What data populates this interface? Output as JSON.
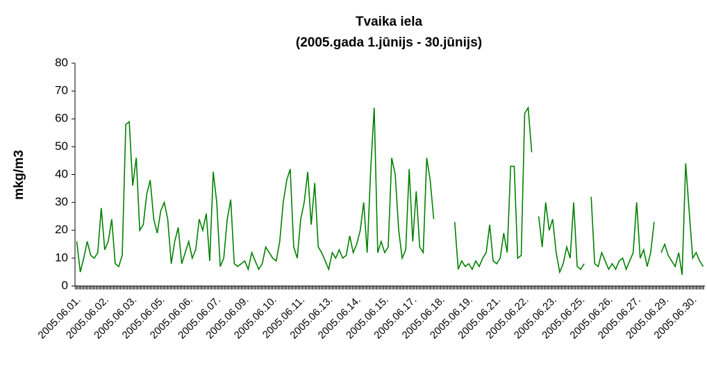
{
  "chart_data": {
    "type": "line",
    "title": "Tvaika iela",
    "subtitle": "(2005.gada 1.jūnijs - 30.jūnijs)",
    "y_label": "mkg/m3",
    "ylim": [
      0,
      80
    ],
    "yticks": [
      0,
      10,
      20,
      30,
      40,
      50,
      60,
      70,
      80
    ],
    "grid": false,
    "categories": [
      "2005.06.01.",
      null,
      null,
      null,
      null,
      null,
      null,
      null,
      "2005.06.02.",
      null,
      null,
      null,
      null,
      null,
      null,
      null,
      "2005.06.03.",
      null,
      null,
      null,
      null,
      null,
      null,
      null,
      "2005.06.05.",
      null,
      null,
      null,
      null,
      null,
      null,
      null,
      "2005.06.06.",
      null,
      null,
      null,
      null,
      null,
      null,
      null,
      "2005.06.07.",
      null,
      null,
      null,
      null,
      null,
      null,
      null,
      "2005.06.09.",
      null,
      null,
      null,
      null,
      null,
      null,
      null,
      "2005.06.10.",
      null,
      null,
      null,
      null,
      null,
      null,
      null,
      "2005.06.11.",
      null,
      null,
      null,
      null,
      null,
      null,
      null,
      "2005.06.13.",
      null,
      null,
      null,
      null,
      null,
      null,
      null,
      "2005.06.14.",
      null,
      null,
      null,
      null,
      null,
      null,
      null,
      "2005.06.15.",
      null,
      null,
      null,
      null,
      null,
      null,
      null,
      "2005.06.17.",
      null,
      null,
      null,
      null,
      null,
      null,
      null,
      "2005.06.18.",
      null,
      null,
      null,
      null,
      null,
      null,
      null,
      "2005.06.19.",
      null,
      null,
      null,
      null,
      null,
      null,
      null,
      "2005.06.21.",
      null,
      null,
      null,
      null,
      null,
      null,
      null,
      "2005.06.22.",
      null,
      null,
      null,
      null,
      null,
      null,
      null,
      "2005.06.23.",
      null,
      null,
      null,
      null,
      null,
      null,
      null,
      "2005.06.25.",
      null,
      null,
      null,
      null,
      null,
      null,
      null,
      "2005.06.26.",
      null,
      null,
      null,
      null,
      null,
      null,
      null,
      "2005.06.27.",
      null,
      null,
      null,
      null,
      null,
      null,
      null,
      "2005.06.29.",
      null,
      null,
      null,
      null,
      null,
      null,
      null,
      "2005.06.30.",
      null,
      null,
      null
    ],
    "series": [
      {
        "name": "Tvaika iela",
        "color": "#008000",
        "values": [
          16,
          5,
          10,
          16,
          11,
          10,
          12,
          28,
          13,
          16,
          24,
          8,
          7,
          11,
          58,
          59,
          36,
          46,
          20,
          22,
          33,
          38,
          24,
          19,
          27,
          30,
          24,
          8,
          16,
          21,
          8,
          12,
          16,
          10,
          13,
          24,
          20,
          26,
          9,
          41,
          30,
          7,
          10,
          24,
          31,
          8,
          7,
          8,
          9,
          6,
          12,
          9,
          6,
          8,
          14,
          12,
          10,
          9,
          16,
          30,
          38,
          42,
          14,
          10,
          24,
          30,
          41,
          22,
          37,
          14,
          12,
          9,
          6,
          12,
          10,
          13,
          10,
          11,
          18,
          12,
          15,
          20,
          30,
          12,
          42,
          64,
          12,
          16,
          12,
          14,
          46,
          40,
          20,
          10,
          13,
          42,
          16,
          34,
          14,
          12,
          46,
          38,
          24,
          null,
          null,
          null,
          null,
          null,
          23,
          6,
          9,
          7,
          8,
          6,
          9,
          7,
          10,
          12,
          22,
          9,
          8,
          10,
          19,
          12,
          43,
          43,
          10,
          11,
          62,
          64,
          48,
          null,
          25,
          14,
          30,
          20,
          24,
          12,
          5,
          8,
          14,
          10,
          30,
          7,
          6,
          8,
          null,
          32,
          8,
          7,
          12,
          9,
          6,
          8,
          6,
          9,
          10,
          6,
          9,
          12,
          30,
          10,
          13,
          7,
          12,
          23,
          null,
          12,
          15,
          11,
          9,
          7,
          12,
          4,
          44,
          27,
          10,
          12,
          9,
          7
        ]
      }
    ]
  }
}
